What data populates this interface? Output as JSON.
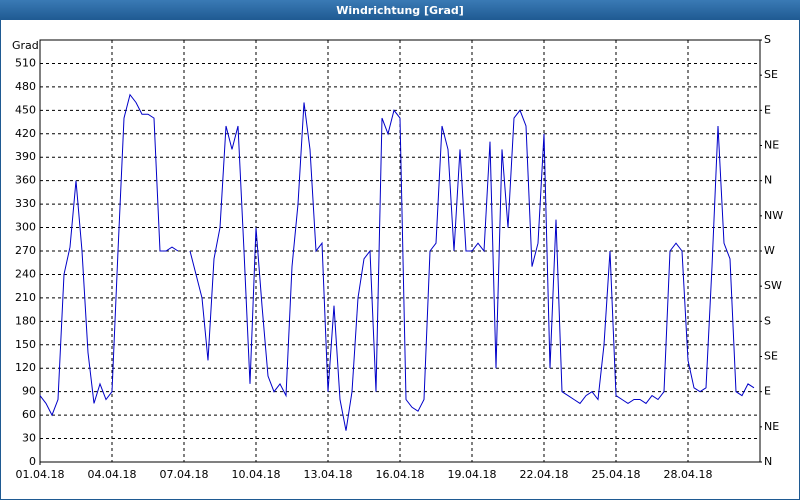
{
  "chart_data": {
    "type": "line",
    "title": "Windrichtung [Grad]",
    "y_label": "Grad",
    "color": "#0000c8",
    "grid": true,
    "xlim": [
      0,
      30
    ],
    "xticks": [
      {
        "value": 0,
        "label": "01.04.18"
      },
      {
        "value": 3,
        "label": "04.04.18"
      },
      {
        "value": 6,
        "label": "07.04.18"
      },
      {
        "value": 9,
        "label": "10.04.18"
      },
      {
        "value": 12,
        "label": "13.04.18"
      },
      {
        "value": 15,
        "label": "16.04.18"
      },
      {
        "value": 18,
        "label": "19.04.18"
      },
      {
        "value": 21,
        "label": "22.04.18"
      },
      {
        "value": 24,
        "label": "25.04.18"
      },
      {
        "value": 27,
        "label": "28.04.18"
      }
    ],
    "ylim": [
      0,
      540
    ],
    "yticks": [
      0,
      30,
      60,
      90,
      120,
      150,
      180,
      210,
      240,
      270,
      300,
      330,
      360,
      390,
      420,
      450,
      480,
      510
    ],
    "y2lim": [
      0,
      540
    ],
    "y2ticks": [
      {
        "value": 0,
        "label": "N"
      },
      {
        "value": 45,
        "label": "NE"
      },
      {
        "value": 90,
        "label": "E"
      },
      {
        "value": 135,
        "label": "SE"
      },
      {
        "value": 180,
        "label": "S"
      },
      {
        "value": 225,
        "label": "SW"
      },
      {
        "value": 270,
        "label": "W"
      },
      {
        "value": 315,
        "label": "NW"
      },
      {
        "value": 360,
        "label": "N"
      },
      {
        "value": 405,
        "label": "NE"
      },
      {
        "value": 450,
        "label": "E"
      },
      {
        "value": 495,
        "label": "SE"
      },
      {
        "value": 540,
        "label": "S"
      }
    ],
    "x": [
      0,
      0.25,
      0.5,
      0.75,
      1,
      1.25,
      1.5,
      1.75,
      2,
      2.25,
      2.5,
      2.75,
      3,
      3.25,
      3.5,
      3.75,
      4,
      4.25,
      4.5,
      4.75,
      5,
      5.25,
      5.5,
      5.75,
      6,
      6.25,
      6.5,
      6.75,
      7,
      7.25,
      7.5,
      7.75,
      8,
      8.25,
      8.5,
      8.75,
      9,
      9.25,
      9.5,
      9.75,
      10,
      10.25,
      10.5,
      10.75,
      11,
      11.25,
      11.5,
      11.75,
      12,
      12.25,
      12.5,
      12.75,
      13,
      13.25,
      13.5,
      13.75,
      14,
      14.25,
      14.5,
      14.75,
      15,
      15.25,
      15.5,
      15.75,
      16,
      16.25,
      16.5,
      16.75,
      17,
      17.25,
      17.5,
      17.75,
      18,
      18.25,
      18.5,
      18.75,
      19,
      19.25,
      19.5,
      19.75,
      20,
      20.25,
      20.5,
      20.75,
      21,
      21.25,
      21.5,
      21.75,
      22,
      22.25,
      22.5,
      22.75,
      23,
      23.25,
      23.5,
      23.75,
      24,
      24.25,
      24.5,
      24.75,
      25,
      25.25,
      25.5,
      25.75,
      26,
      26.25,
      26.5,
      26.75,
      27,
      27.25,
      27.5,
      27.75,
      28,
      28.25,
      28.5,
      28.75,
      29,
      29.25,
      29.5,
      29.75
    ],
    "values": [
      85,
      75,
      60,
      80,
      240,
      275,
      360,
      270,
      140,
      75,
      100,
      80,
      90,
      270,
      440,
      470,
      460,
      445,
      445,
      440,
      270,
      270,
      275,
      270,
      null,
      270,
      240,
      210,
      130,
      260,
      300,
      430,
      400,
      430,
      270,
      100,
      300,
      200,
      110,
      90,
      100,
      85,
      250,
      330,
      460,
      400,
      270,
      280,
      90,
      200,
      80,
      40,
      90,
      210,
      260,
      270,
      90,
      440,
      420,
      450,
      440,
      80,
      70,
      65,
      80,
      270,
      280,
      430,
      400,
      270,
      400,
      270,
      270,
      280,
      270,
      410,
      120,
      400,
      300,
      440,
      450,
      430,
      250,
      280,
      420,
      120,
      310,
      90,
      85,
      80,
      75,
      85,
      90,
      80,
      150,
      270,
      85,
      80,
      75,
      80,
      80,
      75,
      85,
      80,
      90,
      270,
      280,
      270,
      130,
      95,
      90,
      95,
      250,
      430,
      280,
      260,
      90,
      85,
      100,
      95
    ]
  }
}
